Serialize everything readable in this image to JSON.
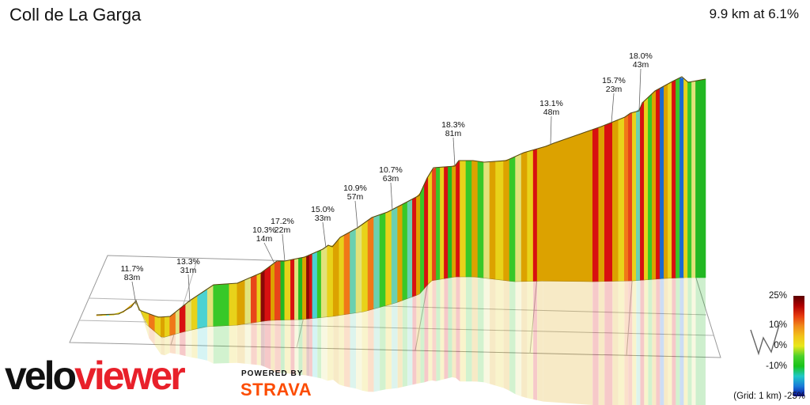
{
  "title": "Coll de La Garga",
  "summary": "9.9 km at 6.1%",
  "branding": {
    "logo_part1": "velo",
    "logo_part2": "viewer",
    "powered_by": "POWERED BY",
    "strava": "STRAVA"
  },
  "legend": {
    "ticks": [
      "25%",
      "10%",
      "0%",
      "-10%",
      "-25%"
    ],
    "grid_note": "(Grid: 1 km)",
    "colors": [
      "#5a0000",
      "#b00000",
      "#e63a0f",
      "#f08a1a",
      "#f2c21a",
      "#e8e81a",
      "#4cd12c",
      "#18c41a",
      "#20c8c8",
      "#1a7ad8",
      "#0c0c9c"
    ]
  },
  "chart_data": {
    "type": "area",
    "title": "Coll de La Garga",
    "subtitle": "9.9 km at 6.1%",
    "distance_km": 9.9,
    "avg_gradient_pct": 6.1,
    "grid_km": 1,
    "gradient_scale_pct": [
      -25,
      25
    ],
    "annotations": [
      {
        "gradient": "11.7%",
        "length": "83m"
      },
      {
        "gradient": "13.3%",
        "length": "31m"
      },
      {
        "gradient": "10.3%",
        "length": "14m"
      },
      {
        "gradient": "17.2%",
        "length": "22m"
      },
      {
        "gradient": "15.0%",
        "length": "33m"
      },
      {
        "gradient": "10.9%",
        "length": "57m"
      },
      {
        "gradient": "10.7%",
        "length": "63m"
      },
      {
        "gradient": "18.3%",
        "length": "81m"
      },
      {
        "gradient": "13.1%",
        "length": "48m"
      },
      {
        "gradient": "15.7%",
        "length": "23m"
      },
      {
        "gradient": "18.0%",
        "length": "43m"
      }
    ]
  }
}
